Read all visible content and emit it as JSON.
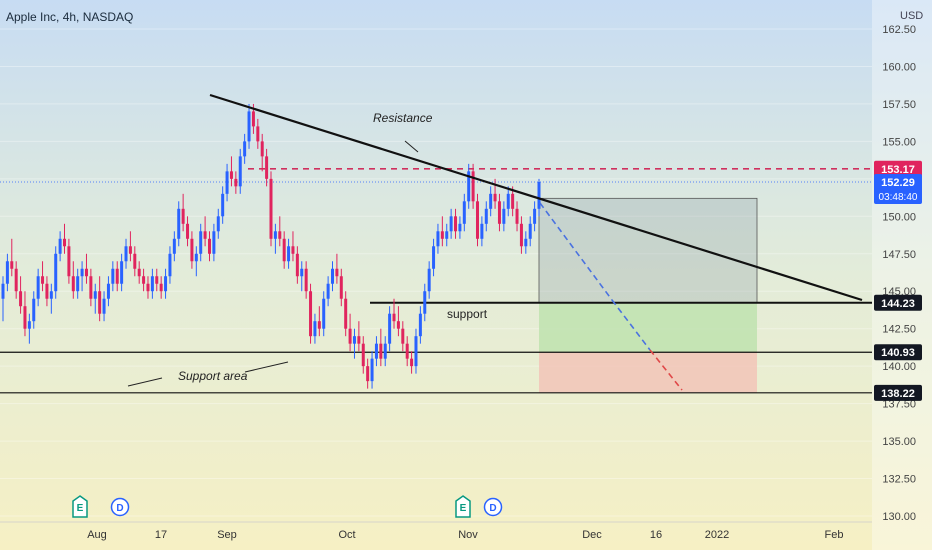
{
  "header": {
    "symbol": "Apple Inc, 4h, NASDAQ",
    "currency": "USD"
  },
  "colors": {
    "up": "#2962ff",
    "down": "#e0245e",
    "resistance": "#e0245e"
  },
  "chart_data": {
    "type": "candlestick",
    "ylim": [
      130,
      163
    ],
    "y_ticks": [
      "162.50",
      "160.00",
      "157.50",
      "155.00",
      "152.50",
      "150.00",
      "147.50",
      "145.00",
      "142.50",
      "140.00",
      "137.50",
      "135.00",
      "132.50",
      "130.00"
    ],
    "x_ticks": [
      "Aug",
      "17",
      "Sep",
      "Oct",
      "Nov",
      "Dec",
      "16",
      "2022",
      "Feb"
    ],
    "candles": [
      [
        144.5,
        146,
        143,
        145.5
      ],
      [
        145.5,
        147.5,
        145,
        147
      ],
      [
        147,
        148.5,
        146,
        146.5
      ],
      [
        146.5,
        147,
        144.5,
        145
      ],
      [
        145,
        146,
        143.5,
        144
      ],
      [
        144,
        145,
        142,
        142.5
      ],
      [
        142.5,
        143.5,
        141.5,
        143
      ],
      [
        143,
        145,
        142.5,
        144.5
      ],
      [
        144.5,
        146.5,
        144,
        146
      ],
      [
        146,
        147,
        145,
        145.5
      ],
      [
        145.5,
        146,
        144,
        144.5
      ],
      [
        144.5,
        145.5,
        143.5,
        145
      ],
      [
        145,
        148,
        144.5,
        147.5
      ],
      [
        147.5,
        149,
        147,
        148.5
      ],
      [
        148.5,
        149.5,
        147.5,
        148
      ],
      [
        148,
        148.5,
        145.5,
        146
      ],
      [
        146,
        147,
        144.5,
        145
      ],
      [
        145,
        146.5,
        144.5,
        146
      ],
      [
        146,
        147,
        145,
        146.5
      ],
      [
        146.5,
        147.5,
        145.5,
        146
      ],
      [
        146,
        146.5,
        144,
        144.5
      ],
      [
        144.5,
        145.5,
        143.5,
        145
      ],
      [
        145,
        146,
        143,
        143.5
      ],
      [
        143.5,
        145,
        143,
        144.5
      ],
      [
        144.5,
        146,
        144,
        145.5
      ],
      [
        145.5,
        147,
        145,
        146.5
      ],
      [
        146.5,
        147,
        145,
        145.5
      ],
      [
        145.5,
        147.5,
        145,
        147
      ],
      [
        147,
        148.5,
        146.5,
        148
      ],
      [
        148,
        149,
        147,
        147.5
      ],
      [
        147.5,
        148,
        146,
        146.5
      ],
      [
        146.5,
        147,
        145.5,
        146
      ],
      [
        146,
        146.5,
        145,
        145.5
      ],
      [
        145.5,
        146,
        144.5,
        145
      ],
      [
        145,
        146.5,
        144.5,
        146
      ],
      [
        146,
        146.5,
        145,
        145.5
      ],
      [
        145.5,
        146,
        144.5,
        145
      ],
      [
        145,
        146.5,
        144.5,
        146
      ],
      [
        146,
        148,
        145.5,
        147.5
      ],
      [
        147.5,
        149,
        147,
        148.5
      ],
      [
        148.5,
        151,
        148,
        150.5
      ],
      [
        150.5,
        151.5,
        149,
        149.5
      ],
      [
        149.5,
        150,
        148,
        148.5
      ],
      [
        148.5,
        149,
        146.5,
        147
      ],
      [
        147,
        148,
        146,
        147.5
      ],
      [
        147.5,
        149.5,
        147,
        149
      ],
      [
        149,
        150,
        148,
        148.5
      ],
      [
        148.5,
        149,
        147,
        147.5
      ],
      [
        147.5,
        149.5,
        147,
        149
      ],
      [
        149,
        150.5,
        148.5,
        150
      ],
      [
        150,
        152,
        149.5,
        151.5
      ],
      [
        151.5,
        153.5,
        151,
        153
      ],
      [
        153,
        154,
        152,
        152.5
      ],
      [
        152.5,
        153,
        151.5,
        152
      ],
      [
        152,
        154.5,
        151.5,
        154
      ],
      [
        154,
        155.5,
        153.5,
        155
      ],
      [
        155,
        157.5,
        154.5,
        157
      ],
      [
        157,
        157.5,
        155.5,
        156
      ],
      [
        156,
        156.5,
        154.5,
        155
      ],
      [
        155,
        155.5,
        153,
        154
      ],
      [
        154,
        154.5,
        152,
        152.5
      ],
      [
        152.5,
        153,
        148,
        148.5
      ],
      [
        148.5,
        149.5,
        147.5,
        149
      ],
      [
        149,
        150,
        148,
        148.5
      ],
      [
        148.5,
        149,
        146.5,
        147
      ],
      [
        147,
        148.5,
        146.5,
        148
      ],
      [
        148,
        149,
        147,
        147.5
      ],
      [
        147.5,
        148,
        145.5,
        146
      ],
      [
        146,
        147,
        145,
        146.5
      ],
      [
        146.5,
        147,
        144.5,
        145
      ],
      [
        145,
        145.5,
        141.5,
        142
      ],
      [
        142,
        143.5,
        141.5,
        143
      ],
      [
        143,
        144,
        142,
        142.5
      ],
      [
        142.5,
        145,
        142,
        144.5
      ],
      [
        144.5,
        146,
        144,
        145.5
      ],
      [
        145.5,
        147,
        145,
        146.5
      ],
      [
        146.5,
        147.5,
        145.5,
        146
      ],
      [
        146,
        146.5,
        144,
        144.5
      ],
      [
        144.5,
        145,
        142,
        142.5
      ],
      [
        142.5,
        143.5,
        141,
        141.5
      ],
      [
        141.5,
        142.5,
        140.5,
        142
      ],
      [
        142,
        143,
        141,
        141.5
      ],
      [
        141.5,
        142,
        139.5,
        140
      ],
      [
        140,
        140.5,
        138.5,
        139
      ],
      [
        139,
        141,
        138.5,
        140.5
      ],
      [
        140.5,
        142,
        140,
        141.5
      ],
      [
        141.5,
        142.5,
        140,
        140.5
      ],
      [
        140.5,
        142,
        140,
        141.5
      ],
      [
        141.5,
        144,
        141,
        143.5
      ],
      [
        143.5,
        144.5,
        142.5,
        143
      ],
      [
        143,
        144,
        142,
        142.5
      ],
      [
        142.5,
        143,
        141,
        141.5
      ],
      [
        141.5,
        142,
        140,
        140.5
      ],
      [
        140.5,
        141,
        139.5,
        140
      ],
      [
        140,
        142.5,
        139.5,
        142
      ],
      [
        142,
        144,
        141.5,
        143.5
      ],
      [
        143.5,
        145.5,
        143,
        145
      ],
      [
        145,
        147,
        144.5,
        146.5
      ],
      [
        146.5,
        148.5,
        146,
        148
      ],
      [
        148,
        149.5,
        147.5,
        149
      ],
      [
        149,
        150,
        148,
        148.5
      ],
      [
        148.5,
        149.5,
        148,
        149
      ],
      [
        149,
        150.5,
        148.5,
        150
      ],
      [
        150,
        150.5,
        148.5,
        149
      ],
      [
        149,
        150,
        148.5,
        149.5
      ],
      [
        149.5,
        151.5,
        149,
        151
      ],
      [
        151,
        153.5,
        150.5,
        153
      ],
      [
        153,
        153.5,
        150.5,
        151
      ],
      [
        151,
        151.5,
        148,
        148.5
      ],
      [
        148.5,
        150,
        148,
        149.5
      ],
      [
        149.5,
        151,
        149,
        150.5
      ],
      [
        150.5,
        152,
        150,
        151.5
      ],
      [
        151.5,
        152.5,
        150.5,
        151
      ],
      [
        151,
        151.5,
        149,
        149.5
      ],
      [
        149.5,
        151,
        149,
        150.5
      ],
      [
        150.5,
        152,
        150,
        151.5
      ],
      [
        151.5,
        152,
        150,
        150.5
      ],
      [
        150.5,
        151,
        149,
        149.5
      ],
      [
        149.5,
        150,
        147.5,
        148
      ],
      [
        148,
        149,
        147.5,
        148.5
      ],
      [
        148.5,
        150,
        148,
        149.5
      ],
      [
        149.5,
        151,
        149,
        150.5
      ],
      [
        150.5,
        152.5,
        150,
        152.29
      ]
    ],
    "price_tags": [
      {
        "label": "153.17",
        "value": 153.17,
        "color": "#e0245e"
      },
      {
        "label": "152.29",
        "value": 152.29,
        "color": "#2962ff",
        "sub": "03:48:40"
      },
      {
        "label": "144.23",
        "value": 144.23,
        "color": "#131722"
      },
      {
        "label": "140.93",
        "value": 140.93,
        "color": "#131722"
      },
      {
        "label": "138.22",
        "value": 138.22,
        "color": "#131722"
      }
    ],
    "annotations": {
      "resistance": "Resistance",
      "support": "support",
      "support_area": "Support area"
    },
    "events": [
      {
        "label": "E",
        "color": "#089981"
      },
      {
        "label": "D",
        "color": "#2962ff"
      },
      {
        "label": "E",
        "color": "#089981"
      },
      {
        "label": "D",
        "color": "#2962ff"
      }
    ]
  }
}
